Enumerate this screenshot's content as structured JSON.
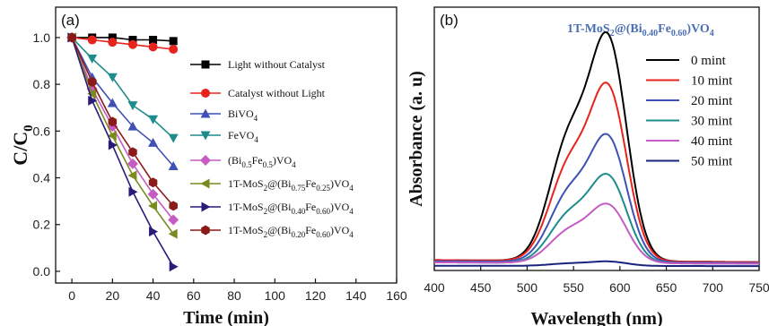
{
  "chart_data": [
    {
      "panel": "(a)",
      "type": "line",
      "xlabel": "Time (min)",
      "ylabel": "C/C0",
      "xlim": [
        -8,
        160
      ],
      "ylim": [
        -0.05,
        1.13
      ],
      "xticks": [
        "0",
        "20",
        "40",
        "60",
        "80",
        "100",
        "120",
        "140",
        "160"
      ],
      "yticks": [
        "0.0",
        "0.2",
        "0.4",
        "0.6",
        "0.8",
        "1.0"
      ],
      "legend_position": "right",
      "series": [
        {
          "name": "Light without Catalyst",
          "color": "#000000",
          "marker": "square",
          "x": [
            0,
            10,
            20,
            30,
            40,
            50
          ],
          "y": [
            1.0,
            1.0,
            1.0,
            0.99,
            0.99,
            0.985
          ]
        },
        {
          "name": "Catalyst without Light",
          "color": "#e8231c",
          "marker": "circle",
          "x": [
            0,
            10,
            20,
            30,
            40,
            50
          ],
          "y": [
            1.0,
            0.99,
            0.98,
            0.97,
            0.96,
            0.95
          ]
        },
        {
          "name": "BiVO4",
          "color": "#3f51b5",
          "marker": "triangle-up",
          "x": [
            0,
            10,
            20,
            30,
            40,
            50
          ],
          "y": [
            1.0,
            0.83,
            0.72,
            0.62,
            0.55,
            0.45
          ]
        },
        {
          "name": "FeVO4",
          "color": "#1e8c8c",
          "marker": "triangle-down",
          "x": [
            0,
            10,
            20,
            30,
            40,
            50
          ],
          "y": [
            1.0,
            0.91,
            0.83,
            0.71,
            0.65,
            0.57
          ]
        },
        {
          "name": "(Bi0.5Fe0.5)VO4",
          "color": "#c45cc4",
          "marker": "diamond",
          "x": [
            0,
            10,
            20,
            30,
            40,
            50
          ],
          "y": [
            1.0,
            0.78,
            0.62,
            0.46,
            0.33,
            0.22
          ]
        },
        {
          "name": "1T-MoS2@(Bi0.75Fe0.25)VO4",
          "color": "#7a8a1e",
          "marker": "triangle-left",
          "x": [
            0,
            10,
            20,
            30,
            40,
            50
          ],
          "y": [
            1.0,
            0.76,
            0.58,
            0.41,
            0.28,
            0.16
          ]
        },
        {
          "name": "1T-MoS2@(Bi0.40Fe0.60)VO4",
          "color": "#2a1a7a",
          "marker": "triangle-right",
          "x": [
            0,
            10,
            20,
            30,
            40,
            50
          ],
          "y": [
            1.0,
            0.73,
            0.54,
            0.34,
            0.17,
            0.02
          ]
        },
        {
          "name": "1T-MoS2@(Bi0.20Fe0.60)VO4",
          "color": "#8b1a1a",
          "marker": "hexagon",
          "x": [
            0,
            10,
            20,
            30,
            40,
            50
          ],
          "y": [
            1.0,
            0.81,
            0.64,
            0.51,
            0.38,
            0.28
          ]
        }
      ]
    },
    {
      "panel": "(b)",
      "type": "line",
      "title": "1T-MoS2@(Bi0.40Fe0.60)VO4",
      "title_color": "#4a6fb5",
      "xlabel": "Wavelength (nm)",
      "ylabel": "Absorbance (a. u)",
      "xlim": [
        400,
        750
      ],
      "xticks": [
        "400",
        "450",
        "500",
        "550",
        "600",
        "650",
        "700",
        "750"
      ],
      "legend_position": "right",
      "series": [
        {
          "name": "0 mint",
          "color": "#000000",
          "peak": 1.0,
          "base": 0.03
        },
        {
          "name": "10 mint",
          "color": "#e8231c",
          "peak": 0.78,
          "base": 0.03
        },
        {
          "name": "20 mint",
          "color": "#3f51b5",
          "peak": 0.56,
          "base": 0.025
        },
        {
          "name": "30 mint",
          "color": "#1e8c8c",
          "peak": 0.39,
          "base": 0.02
        },
        {
          "name": "40 mint",
          "color": "#c45cc4",
          "peak": 0.26,
          "base": 0.02
        },
        {
          "name": "50 mint",
          "color": "#1a237e",
          "peak": 0.02,
          "base": 0.005
        }
      ]
    }
  ]
}
